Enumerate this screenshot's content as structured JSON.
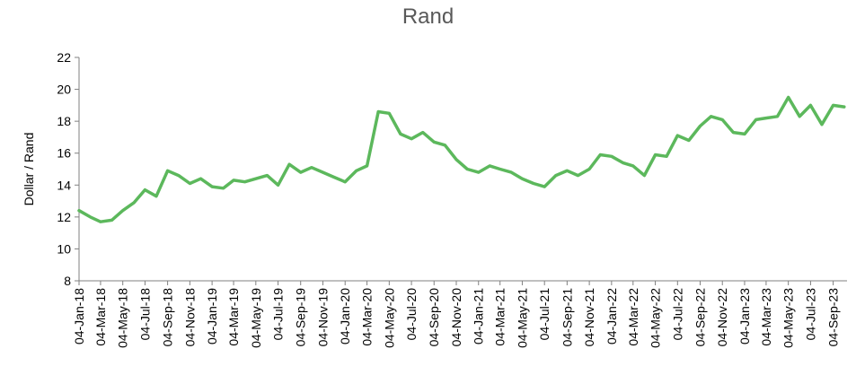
{
  "chart_data": {
    "type": "line",
    "title": "Rand",
    "xlabel": "",
    "ylabel": "Dollar / Rand",
    "ylim": [
      8,
      22
    ],
    "yticks": [
      8,
      10,
      12,
      14,
      16,
      18,
      20,
      22
    ],
    "grid": false,
    "legend": "none",
    "line_color": "#5cb85c",
    "x_tick_labels": [
      "04-Jan-18",
      "04-Mar-18",
      "04-May-18",
      "04-Jul-18",
      "04-Sep-18",
      "04-Nov-18",
      "04-Jan-19",
      "04-Mar-19",
      "04-May-19",
      "04-Jul-19",
      "04-Sep-19",
      "04-Nov-19",
      "04-Jan-20",
      "04-Mar-20",
      "04-May-20",
      "04-Jul-20",
      "04-Sep-20",
      "04-Nov-20",
      "04-Jan-21",
      "04-Mar-21",
      "04-May-21",
      "04-Jul-21",
      "04-Sep-21",
      "04-Nov-21",
      "04-Jan-22",
      "04-Mar-22",
      "04-May-22",
      "04-Jul-22",
      "04-Sep-22",
      "04-Nov-22",
      "04-Jan-23",
      "04-Mar-23",
      "04-May-23",
      "04-Jul-23",
      "04-Sep-23"
    ],
    "series": [
      {
        "x": [
          "2018-01-04",
          "2018-02-04",
          "2018-03-04",
          "2018-04-04",
          "2018-05-04",
          "2018-06-04",
          "2018-07-04",
          "2018-08-04",
          "2018-09-04",
          "2018-10-04",
          "2018-11-04",
          "2018-12-04",
          "2019-01-04",
          "2019-02-04",
          "2019-03-04",
          "2019-04-04",
          "2019-05-04",
          "2019-06-04",
          "2019-07-04",
          "2019-08-04",
          "2019-09-04",
          "2019-10-04",
          "2019-11-04",
          "2019-12-04",
          "2020-01-04",
          "2020-02-04",
          "2020-03-04",
          "2020-04-04",
          "2020-05-04",
          "2020-06-04",
          "2020-07-04",
          "2020-08-04",
          "2020-09-04",
          "2020-10-04",
          "2020-11-04",
          "2020-12-04",
          "2021-01-04",
          "2021-02-04",
          "2021-03-04",
          "2021-04-04",
          "2021-05-04",
          "2021-06-04",
          "2021-07-04",
          "2021-08-04",
          "2021-09-04",
          "2021-10-04",
          "2021-11-04",
          "2021-12-04",
          "2022-01-04",
          "2022-02-04",
          "2022-03-04",
          "2022-04-04",
          "2022-05-04",
          "2022-06-04",
          "2022-07-04",
          "2022-08-04",
          "2022-09-04",
          "2022-10-04",
          "2022-11-04",
          "2022-12-04",
          "2023-01-04",
          "2023-02-04",
          "2023-03-04",
          "2023-04-04",
          "2023-05-04",
          "2023-06-04",
          "2023-07-04",
          "2023-08-04",
          "2023-09-04",
          "2023-10-04"
        ],
        "values": [
          12.4,
          12.0,
          11.7,
          11.8,
          12.4,
          12.9,
          13.7,
          13.3,
          14.9,
          14.6,
          14.1,
          14.4,
          13.9,
          13.8,
          14.3,
          14.2,
          14.4,
          14.6,
          14.0,
          15.3,
          14.8,
          15.1,
          14.8,
          14.5,
          14.2,
          14.9,
          15.2,
          18.6,
          18.5,
          17.2,
          16.9,
          17.3,
          16.7,
          16.5,
          15.6,
          15.0,
          14.8,
          15.2,
          15.0,
          14.8,
          14.4,
          14.1,
          13.9,
          14.6,
          14.9,
          14.6,
          15.0,
          15.9,
          15.8,
          15.4,
          15.2,
          14.6,
          15.9,
          15.8,
          17.1,
          16.8,
          17.7,
          18.3,
          18.1,
          17.3,
          17.2,
          18.1,
          18.2,
          18.3,
          19.5,
          18.3,
          19.0,
          17.8,
          19.0,
          18.9
        ]
      }
    ]
  }
}
